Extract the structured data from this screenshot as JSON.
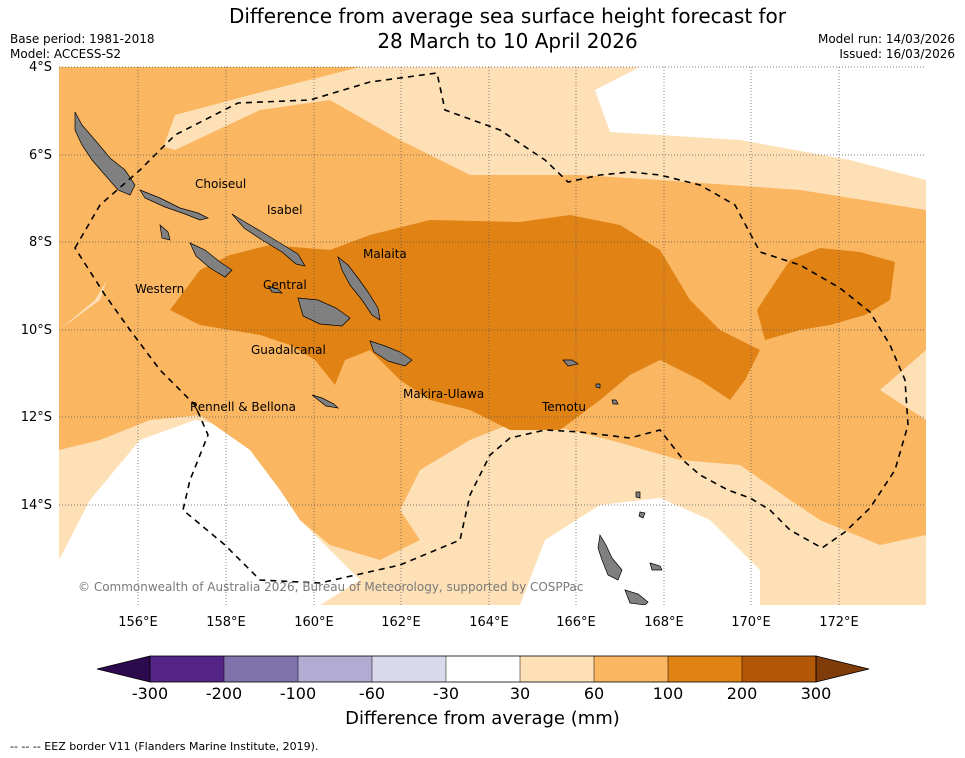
{
  "header": {
    "title_line1": "Difference from average sea surface height forecast for",
    "title_line2": "28 March to 10 April 2026",
    "base_period": "Base period: 1981-2018",
    "model": "Model: ACCESS-S2",
    "model_run": "Model run: 14/03/2026",
    "issued": "Issued: 16/03/2026"
  },
  "map": {
    "lat_labels": [
      "4°S",
      "6°S",
      "8°S",
      "10°S",
      "12°S",
      "14°S"
    ],
    "lon_labels": [
      "156°E",
      "158°E",
      "160°E",
      "162°E",
      "164°E",
      "166°E",
      "168°E",
      "170°E",
      "172°E"
    ],
    "places": {
      "choiseul": "Choiseul",
      "isabel": "Isabel",
      "malaita": "Malaita",
      "western": "Western",
      "central": "Central",
      "guadalcanal": "Guadalcanal",
      "makira": "Makira-Ulawa",
      "temotu": "Temotu",
      "rennell": "Rennell & Bellona"
    },
    "copyright": "© Commonwealth of Australia 2026, Bureau of Meteorology, supported by COSPPac"
  },
  "colorbar": {
    "ticks": [
      "-300",
      "-200",
      "-100",
      "-60",
      "-30",
      "30",
      "60",
      "100",
      "200",
      "300"
    ],
    "label": "Difference from average (mm)",
    "colors": {
      "extend_low": "#2d0a4e",
      "lt_m200": "#542487",
      "m200_m100": "#8073ac",
      "m100_m60": "#b2abd2",
      "m60_m30": "#d8daeb",
      "m30_30": "#ffffff",
      "p30_60": "#fee0b6",
      "p60_100": "#fbb661",
      "p100_200": "#e08214",
      "p200_300": "#b35806",
      "extend_high": "#7f3b08"
    }
  },
  "legend": {
    "eez_text": "--  --  -- EEZ border V11 (Flanders Marine Institute, 2019)."
  }
}
